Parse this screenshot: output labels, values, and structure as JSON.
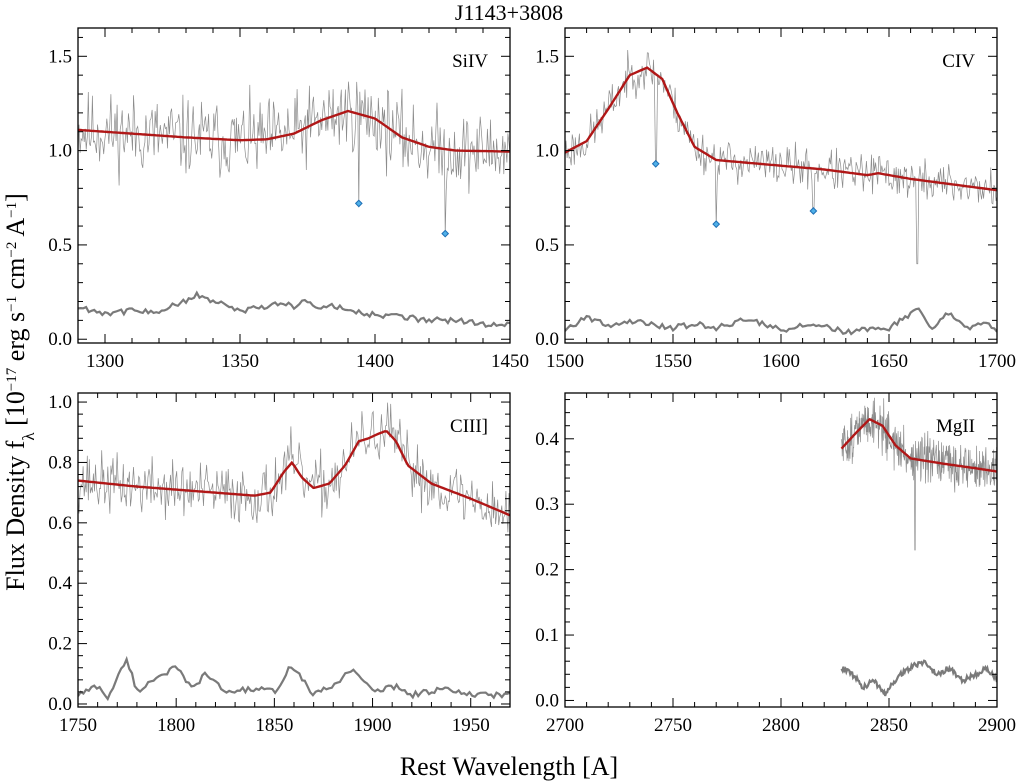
{
  "title": "J1143+3808",
  "xlabel": "Rest Wavelength [A]",
  "ylabel": {
    "main": "Flux Density f",
    "sub": "λ",
    "units_a": " [10",
    "exp1": "−17",
    "units_b": " erg s",
    "exp2": "−1",
    "units_c": " cm",
    "exp3": "−2",
    "units_d": " A",
    "exp4": "−1",
    "units_e": "]"
  },
  "colors": {
    "spectrum": "#8c8c8c",
    "model": "#b01717",
    "error": "#7a7a7a",
    "marker_fill": "#4fb0e8",
    "marker_edge": "#1f6fb5",
    "axes": "#000000"
  },
  "chart_data": [
    {
      "type": "line",
      "label": "SiIV",
      "xlim": [
        1290,
        1450
      ],
      "ylim": [
        -0.02,
        1.65
      ],
      "xticks": [
        1300,
        1350,
        1400,
        1450
      ],
      "yticks": [
        0.0,
        0.5,
        1.0,
        1.5
      ],
      "ytick_labels": [
        "0.0",
        "0.5",
        "1.0",
        "1.5"
      ],
      "model": [
        [
          1290,
          1.11
        ],
        [
          1310,
          1.09
        ],
        [
          1330,
          1.07
        ],
        [
          1350,
          1.055
        ],
        [
          1360,
          1.06
        ],
        [
          1370,
          1.09
        ],
        [
          1380,
          1.16
        ],
        [
          1390,
          1.21
        ],
        [
          1400,
          1.17
        ],
        [
          1410,
          1.07
        ],
        [
          1420,
          1.02
        ],
        [
          1430,
          1.0
        ],
        [
          1450,
          0.995
        ]
      ],
      "error": [
        [
          1290,
          0.17
        ],
        [
          1300,
          0.14
        ],
        [
          1310,
          0.15
        ],
        [
          1320,
          0.15
        ],
        [
          1330,
          0.2
        ],
        [
          1334,
          0.24
        ],
        [
          1340,
          0.2
        ],
        [
          1350,
          0.15
        ],
        [
          1360,
          0.17
        ],
        [
          1366,
          0.2
        ],
        [
          1370,
          0.17
        ],
        [
          1375,
          0.21
        ],
        [
          1380,
          0.16
        ],
        [
          1385,
          0.18
        ],
        [
          1390,
          0.15
        ],
        [
          1400,
          0.13
        ],
        [
          1410,
          0.12
        ],
        [
          1420,
          0.1
        ],
        [
          1430,
          0.1
        ],
        [
          1440,
          0.08
        ],
        [
          1450,
          0.08
        ]
      ],
      "markers": [
        [
          1394,
          0.72
        ],
        [
          1426,
          0.56
        ]
      ],
      "spectrum": {
        "seed": 11,
        "noise": 0.17,
        "base": 1.06,
        "dips": [
          [
            1394,
            0.7
          ],
          [
            1426,
            0.55
          ]
        ]
      }
    },
    {
      "type": "line",
      "label": "CIV",
      "xlim": [
        1500,
        1700
      ],
      "ylim": [
        -0.02,
        1.65
      ],
      "xticks": [
        1500,
        1550,
        1600,
        1650,
        1700
      ],
      "yticks": [
        0.0,
        0.5,
        1.0,
        1.5
      ],
      "ytick_labels": [
        "0.0",
        "0.5",
        "1.0",
        "1.5"
      ],
      "model": [
        [
          1500,
          0.99
        ],
        [
          1510,
          1.05
        ],
        [
          1520,
          1.22
        ],
        [
          1530,
          1.4
        ],
        [
          1538,
          1.44
        ],
        [
          1545,
          1.38
        ],
        [
          1552,
          1.2
        ],
        [
          1560,
          1.02
        ],
        [
          1570,
          0.95
        ],
        [
          1580,
          0.94
        ],
        [
          1600,
          0.92
        ],
        [
          1620,
          0.9
        ],
        [
          1640,
          0.87
        ],
        [
          1645,
          0.88
        ],
        [
          1660,
          0.85
        ],
        [
          1680,
          0.82
        ],
        [
          1700,
          0.79
        ]
      ],
      "error": [
        [
          1500,
          0.05
        ],
        [
          1510,
          0.12
        ],
        [
          1520,
          0.07
        ],
        [
          1530,
          0.1
        ],
        [
          1540,
          0.08
        ],
        [
          1550,
          0.06
        ],
        [
          1560,
          0.08
        ],
        [
          1570,
          0.06
        ],
        [
          1585,
          0.11
        ],
        [
          1600,
          0.05
        ],
        [
          1615,
          0.08
        ],
        [
          1630,
          0.04
        ],
        [
          1650,
          0.06
        ],
        [
          1663,
          0.16
        ],
        [
          1670,
          0.05
        ],
        [
          1677,
          0.14
        ],
        [
          1685,
          0.06
        ],
        [
          1695,
          0.08
        ],
        [
          1700,
          0.04
        ]
      ],
      "markers": [
        [
          1542,
          0.93
        ],
        [
          1570,
          0.61
        ],
        [
          1615,
          0.68
        ]
      ],
      "spectrum": {
        "seed": 23,
        "noise": 0.09,
        "base": 0.92,
        "dips": [
          [
            1542,
            0.92
          ],
          [
            1570,
            0.6
          ],
          [
            1615,
            0.67
          ],
          [
            1663,
            0.4
          ]
        ]
      }
    },
    {
      "type": "line",
      "label": "CIII]",
      "xlim": [
        1750,
        1970
      ],
      "ylim": [
        -0.01,
        1.03
      ],
      "xticks": [
        1750,
        1800,
        1850,
        1900,
        1950
      ],
      "yticks": [
        0.0,
        0.2,
        0.4,
        0.6,
        0.8,
        1.0
      ],
      "ytick_labels": [
        "0.0",
        "0.2",
        "0.4",
        "0.6",
        "0.8",
        "1.0"
      ],
      "model": [
        [
          1750,
          0.74
        ],
        [
          1780,
          0.72
        ],
        [
          1810,
          0.705
        ],
        [
          1840,
          0.69
        ],
        [
          1848,
          0.7
        ],
        [
          1855,
          0.77
        ],
        [
          1859,
          0.8
        ],
        [
          1864,
          0.75
        ],
        [
          1870,
          0.715
        ],
        [
          1878,
          0.73
        ],
        [
          1886,
          0.79
        ],
        [
          1893,
          0.87
        ],
        [
          1898,
          0.88
        ],
        [
          1903,
          0.895
        ],
        [
          1907,
          0.905
        ],
        [
          1912,
          0.87
        ],
        [
          1918,
          0.79
        ],
        [
          1930,
          0.73
        ],
        [
          1950,
          0.68
        ],
        [
          1970,
          0.625
        ]
      ],
      "error": [
        [
          1750,
          0.03
        ],
        [
          1760,
          0.06
        ],
        [
          1765,
          0.02
        ],
        [
          1775,
          0.15
        ],
        [
          1780,
          0.04
        ],
        [
          1790,
          0.09
        ],
        [
          1800,
          0.12
        ],
        [
          1808,
          0.05
        ],
        [
          1815,
          0.1
        ],
        [
          1825,
          0.04
        ],
        [
          1840,
          0.05
        ],
        [
          1850,
          0.04
        ],
        [
          1859,
          0.13
        ],
        [
          1870,
          0.03
        ],
        [
          1880,
          0.06
        ],
        [
          1890,
          0.12
        ],
        [
          1900,
          0.04
        ],
        [
          1912,
          0.06
        ],
        [
          1920,
          0.03
        ],
        [
          1935,
          0.05
        ],
        [
          1950,
          0.03
        ],
        [
          1970,
          0.03
        ]
      ],
      "markers": [],
      "spectrum": {
        "seed": 37,
        "noise": 0.08,
        "base": 0.74,
        "dips": []
      }
    },
    {
      "type": "line",
      "label": "MgII",
      "xlim": [
        2700,
        2900
      ],
      "ylim": [
        -0.01,
        0.47
      ],
      "xticks": [
        2700,
        2750,
        2800,
        2850,
        2900
      ],
      "yticks": [
        0.0,
        0.1,
        0.2,
        0.3,
        0.4
      ],
      "ytick_labels": [
        "0.0",
        "0.1",
        "0.2",
        "0.3",
        "0.4"
      ],
      "model": [
        [
          2828,
          0.385
        ],
        [
          2835,
          0.41
        ],
        [
          2841,
          0.43
        ],
        [
          2847,
          0.42
        ],
        [
          2853,
          0.39
        ],
        [
          2860,
          0.37
        ],
        [
          2875,
          0.362
        ],
        [
          2890,
          0.355
        ],
        [
          2900,
          0.35
        ]
      ],
      "error": [
        [
          2828,
          0.05
        ],
        [
          2833,
          0.04
        ],
        [
          2838,
          0.02
        ],
        [
          2843,
          0.03
        ],
        [
          2848,
          0.01
        ],
        [
          2855,
          0.04
        ],
        [
          2860,
          0.05
        ],
        [
          2866,
          0.06
        ],
        [
          2872,
          0.04
        ],
        [
          2878,
          0.05
        ],
        [
          2884,
          0.03
        ],
        [
          2890,
          0.04
        ],
        [
          2895,
          0.05
        ],
        [
          2900,
          0.03
        ]
      ],
      "markers": [],
      "spectrum": {
        "seed": 51,
        "noise": 0.03,
        "base": 0.37,
        "xstart": 2828,
        "dips": [
          [
            2862,
            0.23
          ]
        ]
      }
    }
  ]
}
